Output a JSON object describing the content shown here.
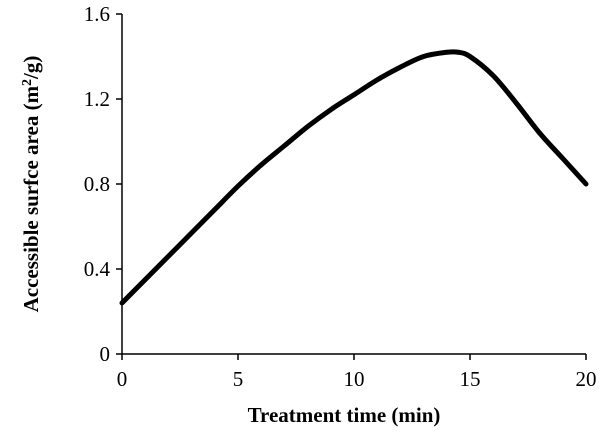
{
  "chart_data": {
    "type": "line",
    "title": "",
    "xlabel": "Treatment time (min)",
    "ylabel_main": "Accessible surfce area (m",
    "ylabel_sup": "2",
    "ylabel_tail": "/g)",
    "xlim": [
      0,
      20
    ],
    "ylim": [
      0,
      1.6
    ],
    "x_ticks": [
      "0",
      "5",
      "10",
      "15",
      "20"
    ],
    "y_ticks": [
      "0",
      "0.4",
      "0.8",
      "1.2",
      "1.6"
    ],
    "grid": false,
    "legend": "none",
    "series": [
      {
        "color": "#000000",
        "x": [
          0,
          1,
          2,
          3,
          4,
          5,
          6,
          7,
          8,
          9,
          10,
          11,
          12,
          13,
          14,
          14.5,
          15,
          16,
          17,
          18,
          19,
          20
        ],
        "y": [
          0.24,
          0.35,
          0.46,
          0.57,
          0.68,
          0.79,
          0.89,
          0.98,
          1.07,
          1.15,
          1.22,
          1.29,
          1.35,
          1.4,
          1.42,
          1.42,
          1.4,
          1.31,
          1.18,
          1.04,
          0.92,
          0.8
        ]
      }
    ]
  }
}
